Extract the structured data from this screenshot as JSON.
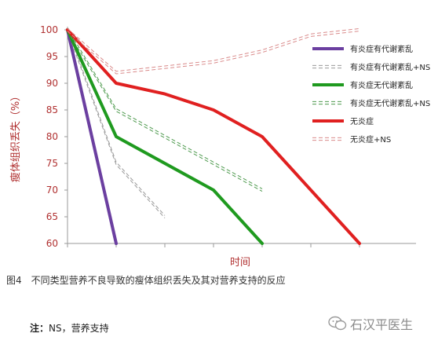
{
  "chart_data": {
    "type": "line",
    "title": "",
    "xlabel": "时间",
    "ylabel": "瘦体组织丢失（%）",
    "ylim": [
      60,
      100
    ],
    "yticks": [
      60,
      65,
      70,
      75,
      80,
      85,
      90,
      95,
      100
    ],
    "x_range": [
      0,
      6
    ],
    "grid": false,
    "legend_position": "right",
    "series": [
      {
        "name": "有炎症有代谢紊乱",
        "color": "#6b3fa0",
        "style": "solid",
        "x": [
          0,
          1
        ],
        "y": [
          100,
          60
        ]
      },
      {
        "name": "有炎症有代谢紊乱+NS",
        "color": "#999999",
        "style": "dashed",
        "x": [
          0,
          1,
          2
        ],
        "y": [
          100,
          75,
          65
        ]
      },
      {
        "name": "有炎症无代谢紊乱",
        "color": "#1f9a1f",
        "style": "solid",
        "x": [
          0,
          1,
          3,
          4
        ],
        "y": [
          100,
          80,
          70,
          60
        ]
      },
      {
        "name": "有炎症无代谢紊乱+NS",
        "color": "#4e9a4e",
        "style": "dashed",
        "x": [
          0,
          1,
          4
        ],
        "y": [
          100,
          85,
          70
        ]
      },
      {
        "name": "无炎症",
        "color": "#e02020",
        "style": "solid",
        "x": [
          0,
          1,
          2,
          3,
          4,
          6
        ],
        "y": [
          100,
          90,
          88,
          85,
          80,
          60
        ]
      },
      {
        "name": "无炎症+NS",
        "color": "#d98a8a",
        "style": "dashed",
        "x": [
          0,
          1,
          3,
          4,
          5,
          6
        ],
        "y": [
          100,
          92,
          94,
          96,
          99,
          100
        ]
      }
    ]
  },
  "caption": "图4　不同类型营养不良导致的瘦体组织丢失及其对营养支持的反应",
  "note_label": "注：",
  "note_text": "NS，营养支持",
  "watermark_text": "石汉平医生"
}
